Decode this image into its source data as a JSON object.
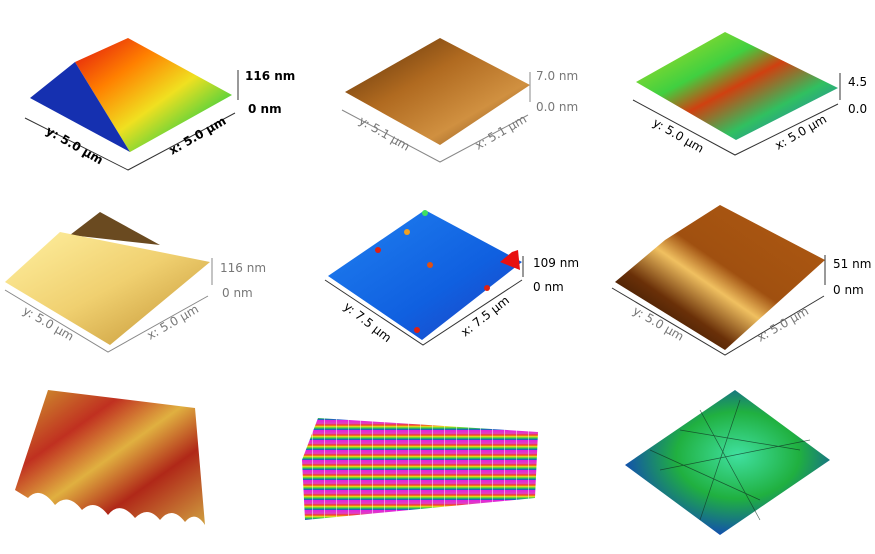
{
  "panels": [
    {
      "id": 1,
      "colormap": "rainbow",
      "z_max": "116 nm",
      "z_min": "0 nm",
      "y_axis": "y: 5.0 µm",
      "x_axis": "x: 5.0 µm"
    },
    {
      "id": 2,
      "colormap": "brown",
      "z_max": "7.0 nm",
      "z_min": "0.0 nm",
      "y_axis": "y: 5.1 µm",
      "x_axis": "x: 5.1 µm"
    },
    {
      "id": 3,
      "colormap": "green-rainbow",
      "z_max": "4.5",
      "z_min": "0.0",
      "y_axis": "y: 5.0 µm",
      "x_axis": "x: 5.0 µm"
    },
    {
      "id": 4,
      "colormap": "gold",
      "z_max": "116 nm",
      "z_min": "0 nm",
      "y_axis": "y: 5.0 µm",
      "x_axis": "x: 5.0 µm"
    },
    {
      "id": 5,
      "colormap": "blue-rainbow",
      "z_max": "109 nm",
      "z_min": "0 nm",
      "y_axis": "y: 7.5 µm",
      "x_axis": "x: 7.5 µm"
    },
    {
      "id": 6,
      "colormap": "copper",
      "z_max": "51 nm",
      "z_min": "0 nm",
      "y_axis": "y: 5.0 µm",
      "x_axis": "x: 5.0 µm"
    },
    {
      "id": 7,
      "colormap": "gold-red-blue"
    },
    {
      "id": 8,
      "colormap": "magenta-rainbow"
    },
    {
      "id": 9,
      "colormap": "green-blue"
    }
  ]
}
